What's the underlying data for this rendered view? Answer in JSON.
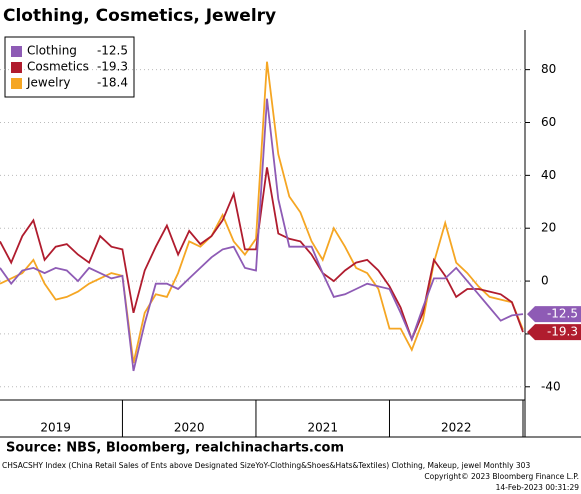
{
  "chart_data": {
    "type": "line",
    "title": "Clothing, Cosmetics, Jewelry",
    "x": [
      2019.083,
      2019.167,
      2019.25,
      2019.333,
      2019.417,
      2019.5,
      2019.583,
      2019.667,
      2019.75,
      2019.833,
      2019.917,
      2020.0,
      2020.083,
      2020.167,
      2020.25,
      2020.333,
      2020.417,
      2020.5,
      2020.583,
      2020.667,
      2020.75,
      2020.833,
      2020.917,
      2021.0,
      2021.083,
      2021.167,
      2021.25,
      2021.333,
      2021.417,
      2021.5,
      2021.583,
      2021.667,
      2021.75,
      2021.833,
      2021.917,
      2022.0,
      2022.083,
      2022.167,
      2022.25,
      2022.333,
      2022.417,
      2022.5,
      2022.583,
      2022.667,
      2022.75,
      2022.833,
      2022.917,
      2023.0
    ],
    "series": [
      {
        "name": "Clothing",
        "color": "#8e5bb5",
        "end_tag": true,
        "values": [
          5,
          -1,
          4,
          5,
          3,
          5,
          4,
          0,
          5,
          3,
          1,
          2,
          -34,
          -16,
          -1,
          -1,
          -3,
          1,
          5,
          9,
          12,
          13,
          5,
          4,
          69,
          31,
          13,
          13,
          13,
          3,
          -6,
          -5,
          -3,
          -1,
          -2,
          -3,
          -12,
          -22,
          -10,
          1,
          1,
          5,
          0,
          -5,
          -10,
          -15,
          -13,
          -12.5
        ]
      },
      {
        "name": "Cosmetics",
        "color": "#b01c2e",
        "end_tag": true,
        "values": [
          15,
          7,
          17,
          23,
          8,
          13,
          14,
          10,
          7,
          17,
          13,
          12,
          -12,
          4,
          13,
          21,
          10,
          19,
          14,
          17,
          23,
          33,
          12,
          12,
          43,
          18,
          16,
          15,
          10,
          3,
          0,
          4,
          7,
          8,
          4,
          -2,
          -10,
          -22,
          -12,
          8,
          2,
          -6,
          -3,
          -3,
          -4,
          -5,
          -8,
          -19.3
        ]
      },
      {
        "name": "Jewelry",
        "color": "#f5a623",
        "end_tag": false,
        "values": [
          -1,
          1,
          3,
          8,
          -1,
          -7,
          -6,
          -4,
          -1,
          1,
          3,
          2,
          -31,
          -12,
          -5,
          -6,
          3,
          15,
          13,
          17,
          25,
          15,
          10,
          16,
          83,
          48,
          32,
          26,
          15,
          8,
          20,
          13,
          5,
          3,
          -3,
          -18,
          -18,
          -26,
          -15,
          7,
          22,
          7,
          3,
          -2,
          -6,
          -7,
          -8,
          -18.4
        ]
      }
    ],
    "xlim": [
      2019.083,
      2023.0
    ],
    "xticks": [
      {
        "value": 2019.5,
        "label": "2019"
      },
      {
        "value": 2020.5,
        "label": "2020"
      },
      {
        "value": 2021.5,
        "label": "2021"
      },
      {
        "value": 2022.5,
        "label": "2022"
      }
    ],
    "xdividers": [
      2020,
      2021,
      2022,
      2023
    ],
    "ylim": [
      -45,
      95
    ],
    "yticks": [
      -40,
      -20,
      0,
      20,
      40,
      60,
      80
    ],
    "grid": true,
    "legend": "upper left",
    "source": "Source: NBS, Bloomberg, realchinacharts.com",
    "footer": "CHSACSHY Index (China Retail Sales of Ents above Designated SizeYoY-Clothing&Shoes&Hats&Textiles) Clothing, Makeup, jewel  Monthly 303",
    "copyright": "Copyright© 2023 Bloomberg Finance L.P.",
    "timestamp": "14-Feb-2023 00:31:29"
  }
}
